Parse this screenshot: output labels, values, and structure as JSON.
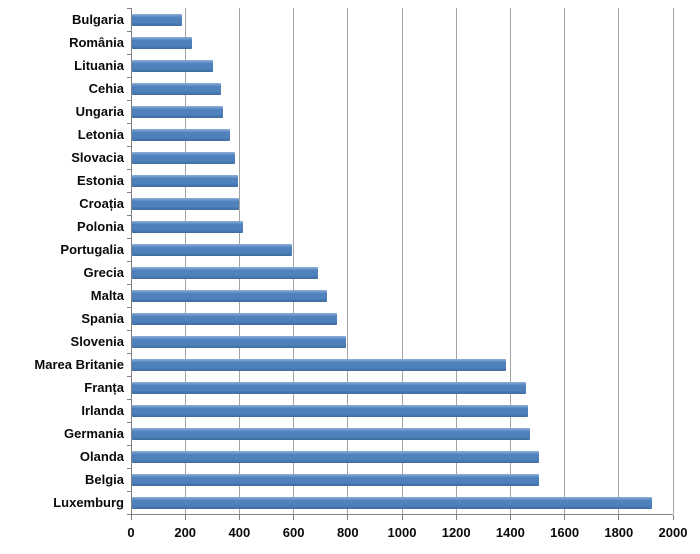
{
  "chart_data": {
    "type": "bar",
    "orientation": "horizontal",
    "title": "",
    "xlabel": "",
    "ylabel": "",
    "legend": "none",
    "grid": "vertical",
    "xlim": [
      0,
      2000
    ],
    "xticks": [
      0,
      200,
      400,
      600,
      800,
      1000,
      1200,
      1400,
      1600,
      1800,
      2000
    ],
    "categories": [
      "Bulgaria",
      "România",
      "Lituania",
      "Cehia",
      "Ungaria",
      "Letonia",
      "Slovacia",
      "Estonia",
      "Croația",
      "Polonia",
      "Portugalia",
      "Grecia",
      "Malta",
      "Spania",
      "Slovenia",
      "Marea Britanie",
      "Franța",
      "Irlanda",
      "Germania",
      "Olanda",
      "Belgia",
      "Luxemburg"
    ],
    "values": [
      185,
      220,
      300,
      330,
      335,
      360,
      380,
      390,
      395,
      410,
      590,
      685,
      720,
      755,
      790,
      1380,
      1455,
      1460,
      1470,
      1500,
      1500,
      1920
    ]
  },
  "colors": {
    "bar": "#4f81bd",
    "bar_top_highlight": "#8fafd7",
    "bar_bottom_shade": "#3f6c9e",
    "gridline": "#a3a3a3",
    "axis": "#7f7f7f",
    "text": "#0a0a0a",
    "background": "#ffffff"
  }
}
